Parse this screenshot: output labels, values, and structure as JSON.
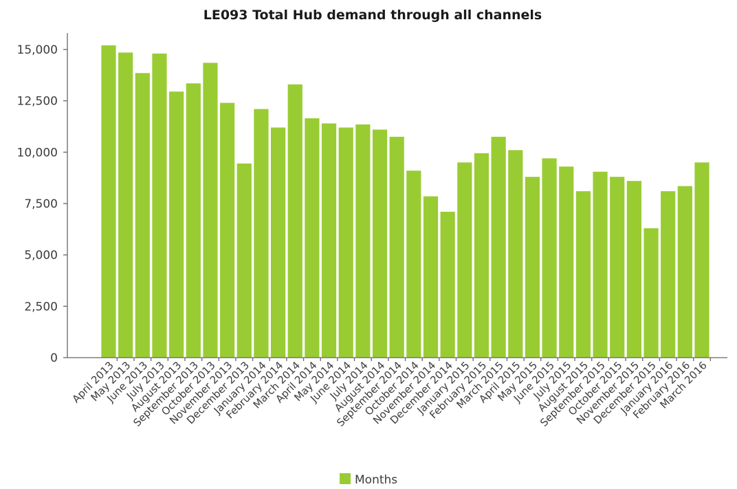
{
  "chart_data": {
    "type": "bar",
    "title": "LE093 Total Hub demand through all channels",
    "xlabel": "",
    "ylabel": "",
    "ylim": [
      0,
      15000
    ],
    "yticks": [
      "0",
      "2,500",
      "5,000",
      "7,500",
      "10,000",
      "12,500",
      "15,000"
    ],
    "ytick_values": [
      0,
      2500,
      5000,
      7500,
      10000,
      12500,
      15000
    ],
    "grid": false,
    "legend_position": "bottom",
    "bar_color": "#99cc33",
    "categories": [
      "April 2013",
      "May 2013",
      "June 2013",
      "July 2013",
      "August 2013",
      "September 2013",
      "October 2013",
      "November 2013",
      "December 2013",
      "January 2014",
      "February 2014",
      "March 2014",
      "April 2014",
      "May 2014",
      "June 2014",
      "July 2014",
      "August 2014",
      "September 2014",
      "October 2014",
      "November 2014",
      "December 2014",
      "January 2015",
      "February 2015",
      "March 2015",
      "April 2015",
      "May 2015",
      "June 2015",
      "July 2015",
      "August 2015",
      "September 2015",
      "October 2015",
      "November 2015",
      "December 2015",
      "January 2016",
      "February 2016",
      "March 2016"
    ],
    "series": [
      {
        "name": "Months",
        "values": [
          15200,
          14850,
          13850,
          14800,
          12950,
          13350,
          14350,
          12400,
          9450,
          12100,
          11200,
          13300,
          11650,
          11400,
          11200,
          11350,
          11100,
          10750,
          9100,
          7850,
          7100,
          9500,
          9950,
          10750,
          10100,
          8800,
          9700,
          9300,
          8100,
          9050,
          8800,
          8600,
          6300,
          8100,
          8350,
          9500
        ]
      }
    ]
  }
}
